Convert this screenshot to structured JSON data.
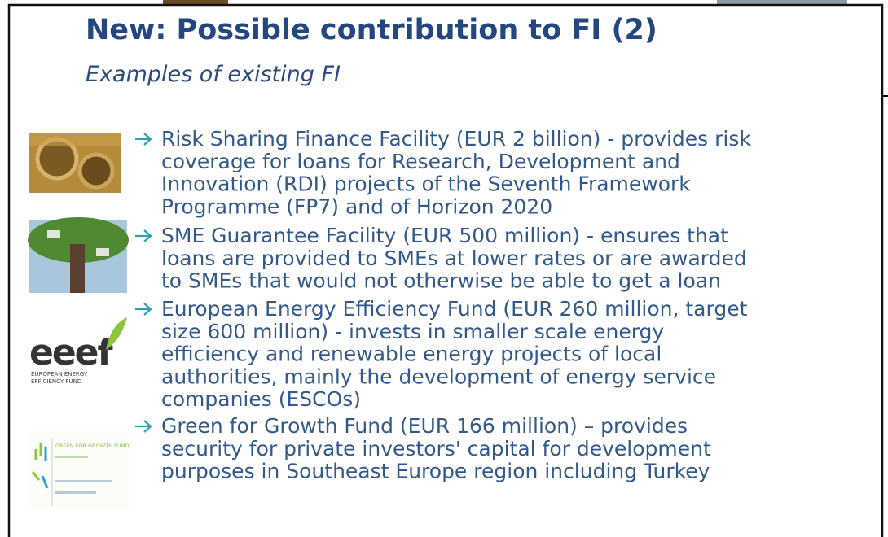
{
  "title": "New: Possible contribution to FI (2)",
  "subtitle": "Examples of existing FI",
  "items": [
    {
      "lines": [
        "Risk Sharing Finance Facility (EUR 2 billion) - provides risk",
        "coverage for loans for Research, Development and",
        "Innovation (RDI) projects of the Seventh Framework",
        "Programme (FP7) and of Horizon 2020"
      ]
    },
    {
      "lines": [
        "SME Guarantee Facility (EUR 500 million) - ensures that",
        "loans are provided to SMEs at lower rates or are awarded",
        "to SMEs that would not otherwise be able to get a loan"
      ]
    },
    {
      "lines": [
        "European Energy Efficiency Fund (EUR 260 million, target",
        "size 600 million) - invests in smaller scale energy",
        "efficiency and renewable energy projects of local",
        "authorities, mainly the development of energy service",
        "companies (ESCOs)"
      ]
    },
    {
      "lines": [
        "Green for Growth Fund (EUR 166 million) – provides",
        "security for private investors' capital for development",
        "purposes in Southeast Europe region including Turkey"
      ]
    }
  ],
  "logos": {
    "eeef": "eeef",
    "eeef_caption": [
      "EUROPEAN ENERGY",
      "EFFICIENCY FUND"
    ],
    "ggf": "GREEN FOR GROWTH FUND"
  }
}
